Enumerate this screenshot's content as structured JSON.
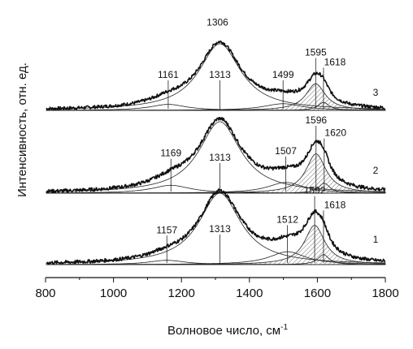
{
  "chart_data": {
    "type": "line",
    "xlabel": "Волновое число, см",
    "xlabel_superscript": "-1",
    "ylabel": "Интенсивность, отн. ед.",
    "xlim": [
      800,
      1800
    ],
    "x_ticks": [
      800,
      1000,
      1200,
      1400,
      1600,
      1800
    ],
    "y_ticks_shown": false,
    "legend": "none",
    "series": [
      {
        "name": "3",
        "baseline": 0.0,
        "bands": [
          {
            "center": 1161,
            "height": 0.09,
            "width": 130,
            "label": "1161",
            "hatched": false
          },
          {
            "center": 1313,
            "height": 1.0,
            "width": 150,
            "label": "1313",
            "hatched": false
          },
          {
            "center": 1499,
            "height": 0.1,
            "width": 140,
            "label": "1499",
            "hatched": false
          },
          {
            "center": 1595,
            "height": 0.4,
            "width": 70,
            "label": "1595",
            "hatched": true
          },
          {
            "center": 1618,
            "height": 0.12,
            "width": 40,
            "label": "1618",
            "hatched": false
          }
        ],
        "overall_peak_labels": [
          "1306"
        ]
      },
      {
        "name": "2",
        "baseline": 0.0,
        "bands": [
          {
            "center": 1169,
            "height": 0.11,
            "width": 140,
            "label": "1169",
            "hatched": false
          },
          {
            "center": 1313,
            "height": 1.0,
            "width": 150,
            "label": "1313",
            "hatched": false
          },
          {
            "center": 1507,
            "height": 0.15,
            "width": 130,
            "label": "1507",
            "hatched": false
          },
          {
            "center": 1596,
            "height": 0.55,
            "width": 72,
            "label": "1596",
            "hatched": true
          },
          {
            "center": 1620,
            "height": 0.14,
            "width": 40,
            "label": "1620",
            "hatched": false
          }
        ],
        "overall_peak_labels": []
      },
      {
        "name": "1",
        "baseline": 0.0,
        "bands": [
          {
            "center": 1157,
            "height": 0.06,
            "width": 130,
            "label": "1157",
            "hatched": false
          },
          {
            "center": 1313,
            "height": 1.0,
            "width": 150,
            "label": "1313",
            "hatched": false
          },
          {
            "center": 1512,
            "height": 0.18,
            "width": 130,
            "label": "1512",
            "hatched": false
          },
          {
            "center": 1592,
            "height": 0.55,
            "width": 72,
            "label": "1592",
            "hatched": true
          },
          {
            "center": 1618,
            "height": 0.14,
            "width": 40,
            "label": "1618",
            "hatched": false
          }
        ],
        "overall_peak_labels": []
      }
    ]
  }
}
